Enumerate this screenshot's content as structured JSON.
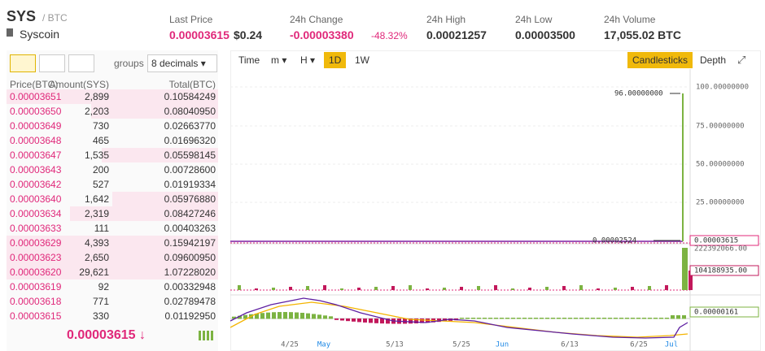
{
  "header": {
    "symbol": "SYS",
    "quote": "/ BTC",
    "name": "Syscoin",
    "stats": [
      {
        "label": "Last Price",
        "value": "0.00003615",
        "extra": "$0.24"
      },
      {
        "label": "24h Change",
        "value": "-0.00003380",
        "extra": "-48.32%"
      },
      {
        "label": "24h High",
        "value": "0.00021257"
      },
      {
        "label": "24h Low",
        "value": "0.00003500"
      },
      {
        "label": "24h Volume",
        "value": "17,055.02 BTC"
      }
    ]
  },
  "orderbook": {
    "groups_label": "groups",
    "groups_value": "8 decimals",
    "columns": [
      "Price(BTC)",
      "Amount(SYS)",
      "Total(BTC)"
    ],
    "rows": [
      [
        "0.00003651",
        "2,899",
        "0.10584249"
      ],
      [
        "0.00003650",
        "2,203",
        "0.08040950"
      ],
      [
        "0.00003649",
        "730",
        "0.02663770"
      ],
      [
        "0.00003648",
        "465",
        "0.01696320"
      ],
      [
        "0.00003647",
        "1,535",
        "0.05598145"
      ],
      [
        "0.00003643",
        "200",
        "0.00728600"
      ],
      [
        "0.00003642",
        "527",
        "0.01919334"
      ],
      [
        "0.00003640",
        "1,642",
        "0.05976880"
      ],
      [
        "0.00003634",
        "2,319",
        "0.08427246"
      ],
      [
        "0.00003633",
        "111",
        "0.00403263"
      ],
      [
        "0.00003629",
        "4,393",
        "0.15942197"
      ],
      [
        "0.00003623",
        "2,650",
        "0.09600950"
      ],
      [
        "0.00003620",
        "29,621",
        "1.07228020"
      ],
      [
        "0.00003619",
        "92",
        "0.00332948"
      ],
      [
        "0.00003618",
        "771",
        "0.02789478"
      ],
      [
        "0.00003615",
        "330",
        "0.01192950"
      ]
    ],
    "last_price": "0.00003615"
  },
  "chart_panel": {
    "toolbar": [
      "Time",
      "m",
      "H",
      "1D",
      "1W"
    ],
    "toolbar_right": [
      "Candlesticks",
      "Depth"
    ],
    "price_axis": [
      "100.00000000",
      "75.00000000",
      "50.00000000",
      "25.00000000"
    ],
    "annotation_high": "96.00000000",
    "annotation_low": "0.00002524",
    "price_tag": "0.00003615",
    "volume_max": "222392066.00",
    "volume_tag": "104188935.00",
    "macd_tag": "0.00000161",
    "x_labels": [
      "4/25",
      "May",
      "5/13",
      "5/25",
      "Jun",
      "6/13",
      "6/25",
      "Jul"
    ]
  }
}
